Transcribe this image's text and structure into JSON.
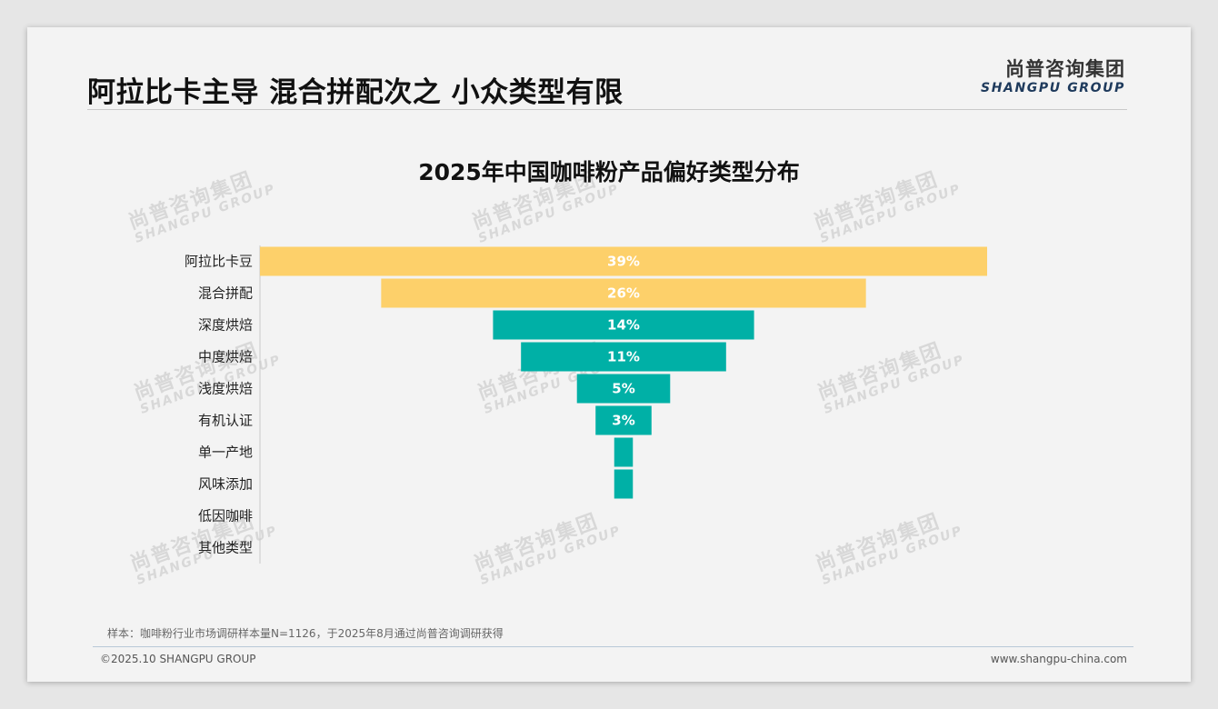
{
  "header": {
    "title": "阿拉比卡主导 混合拼配次之 小众类型有限",
    "brand_cn": "尚普咨询集团",
    "brand_en": "SHANGPU GROUP"
  },
  "watermark": {
    "cn": "尚普咨询集团",
    "en": "SHANGPU GROUP"
  },
  "chart_data": {
    "type": "bar",
    "title": "2025年中国咖啡粉产品偏好类型分布",
    "orientation": "horizontal-centered-funnel",
    "categories": [
      "阿拉比卡豆",
      "混合拼配",
      "深度烘焙",
      "中度烘焙",
      "浅度烘焙",
      "有机认证",
      "单一产地",
      "风味添加",
      "低因咖啡",
      "其他类型"
    ],
    "values": [
      39,
      26,
      14,
      11,
      5,
      3,
      1,
      1,
      0,
      0
    ],
    "labels": [
      "39%",
      "26%",
      "14%",
      "11%",
      "5%",
      "3%",
      "",
      "",
      "",
      ""
    ],
    "value_unit": "%",
    "highlight_count": 2,
    "colors": {
      "highlight": "#fdd06a",
      "normal": "#00b0a6",
      "label": "#ffffff"
    },
    "xlabel": "",
    "ylabel": ""
  },
  "footer": {
    "note": "样本：咖啡粉行业市场调研样本量N=1126，于2025年8月通过尚普咨询调研获得",
    "copyright": "©2025.10 SHANGPU GROUP",
    "url": "www.shangpu-china.com"
  }
}
